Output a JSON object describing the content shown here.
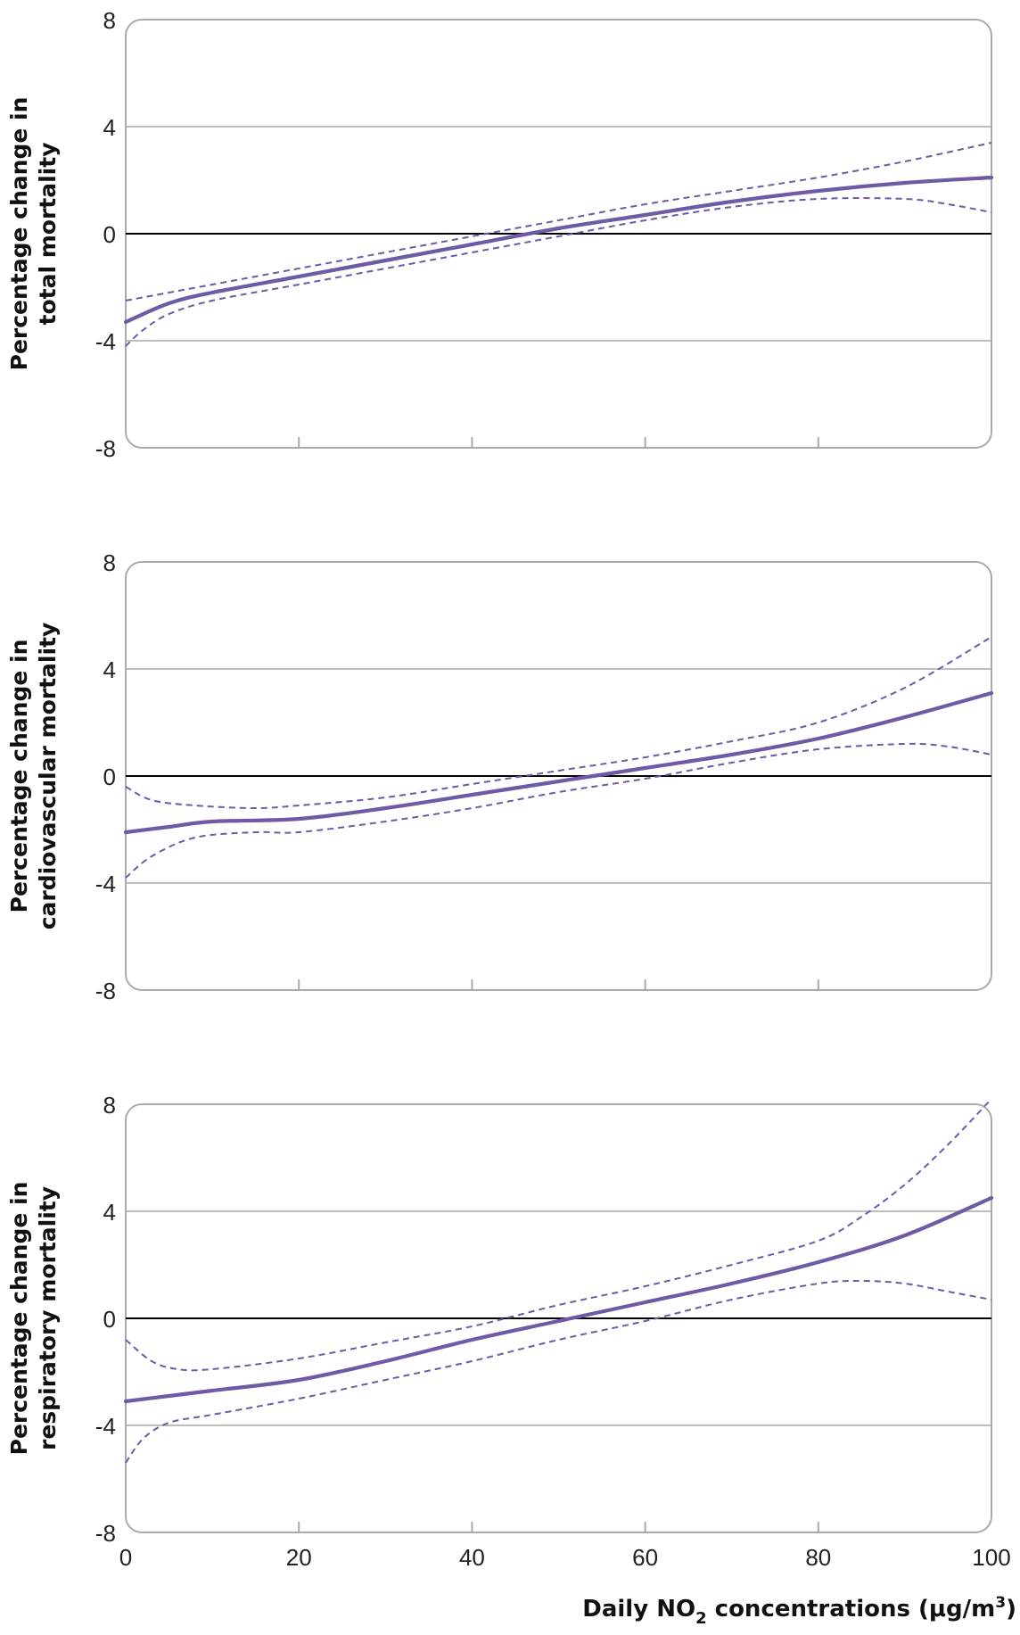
{
  "chart_data": [
    {
      "type": "line",
      "ylabel_lines": [
        "Percentage change in",
        "total mortality"
      ],
      "xlim": [
        0,
        100
      ],
      "ylim": [
        -8,
        8
      ],
      "yticks": [
        -8,
        -4,
        0,
        4,
        8
      ],
      "xticks": [
        0,
        20,
        40,
        60,
        80,
        100
      ],
      "show_xtick_labels": false,
      "grid": true,
      "series": [
        {
          "role": "estimate",
          "style": "solid",
          "x": [
            0,
            5,
            10,
            20,
            30,
            40,
            50,
            60,
            70,
            80,
            90,
            100
          ],
          "y": [
            -3.3,
            -2.6,
            -2.2,
            -1.6,
            -1.0,
            -0.4,
            0.2,
            0.7,
            1.2,
            1.6,
            1.9,
            2.1
          ]
        },
        {
          "role": "upper",
          "style": "dashed",
          "x": [
            0,
            10,
            20,
            30,
            40,
            50,
            60,
            70,
            80,
            90,
            100
          ],
          "y": [
            -2.5,
            -1.9,
            -1.3,
            -0.7,
            -0.1,
            0.5,
            1.1,
            1.6,
            2.1,
            2.7,
            3.4
          ]
        },
        {
          "role": "lower",
          "style": "dashed",
          "x": [
            0,
            2,
            5,
            10,
            20,
            30,
            40,
            50,
            60,
            70,
            80,
            90,
            95,
            100
          ],
          "y": [
            -4.2,
            -3.6,
            -3.0,
            -2.5,
            -1.9,
            -1.3,
            -0.7,
            -0.1,
            0.5,
            1.0,
            1.3,
            1.3,
            1.1,
            0.8
          ]
        }
      ]
    },
    {
      "type": "line",
      "ylabel_lines": [
        "Percentage change in",
        "cardiovascular mortality"
      ],
      "xlim": [
        0,
        100
      ],
      "ylim": [
        -8,
        8
      ],
      "yticks": [
        -8,
        -4,
        0,
        4,
        8
      ],
      "xticks": [
        0,
        20,
        40,
        60,
        80,
        100
      ],
      "show_xtick_labels": false,
      "grid": true,
      "series": [
        {
          "role": "estimate",
          "style": "solid",
          "x": [
            0,
            5,
            10,
            20,
            30,
            40,
            50,
            60,
            70,
            80,
            90,
            100
          ],
          "y": [
            -2.1,
            -1.9,
            -1.7,
            -1.6,
            -1.2,
            -0.7,
            -0.2,
            0.3,
            0.8,
            1.4,
            2.2,
            3.1
          ]
        },
        {
          "role": "upper",
          "style": "dashed",
          "x": [
            0,
            3,
            8,
            15,
            20,
            30,
            40,
            50,
            60,
            70,
            80,
            90,
            100
          ],
          "y": [
            -0.4,
            -0.9,
            -1.1,
            -1.2,
            -1.1,
            -0.8,
            -0.3,
            0.2,
            0.7,
            1.3,
            2.0,
            3.3,
            5.2
          ]
        },
        {
          "role": "lower",
          "style": "dashed",
          "x": [
            0,
            3,
            8,
            15,
            20,
            30,
            40,
            50,
            60,
            70,
            80,
            90,
            95,
            100
          ],
          "y": [
            -3.8,
            -3.0,
            -2.3,
            -2.1,
            -2.1,
            -1.7,
            -1.2,
            -0.6,
            -0.1,
            0.5,
            1.0,
            1.2,
            1.1,
            0.8
          ]
        }
      ]
    },
    {
      "type": "line",
      "ylabel_lines": [
        "Percentage change in",
        "respiratory mortality"
      ],
      "xlabel": "Daily NO",
      "xlabel_sub": "2",
      "xlabel_rest": " concentrations (μg/m",
      "xlabel_sup": "3",
      "xlabel_end": ")",
      "xlim": [
        0,
        100
      ],
      "ylim": [
        -8,
        8
      ],
      "yticks": [
        -8,
        -4,
        0,
        4,
        8
      ],
      "xticks": [
        0,
        20,
        40,
        60,
        80,
        100
      ],
      "show_xtick_labels": true,
      "grid": true,
      "series": [
        {
          "role": "estimate",
          "style": "solid",
          "x": [
            0,
            5,
            10,
            20,
            30,
            40,
            50,
            60,
            70,
            80,
            90,
            100
          ],
          "y": [
            -3.1,
            -2.9,
            -2.7,
            -2.3,
            -1.6,
            -0.8,
            -0.1,
            0.6,
            1.3,
            2.1,
            3.1,
            4.5
          ]
        },
        {
          "role": "upper",
          "style": "dashed",
          "x": [
            0,
            3,
            6,
            10,
            20,
            30,
            40,
            50,
            60,
            70,
            80,
            85,
            90,
            95,
            100
          ],
          "y": [
            -0.8,
            -1.6,
            -1.9,
            -1.9,
            -1.5,
            -0.9,
            -0.3,
            0.5,
            1.2,
            2.0,
            2.9,
            3.8,
            5.0,
            6.5,
            8.2
          ]
        },
        {
          "role": "lower",
          "style": "dashed",
          "x": [
            0,
            2,
            5,
            10,
            20,
            30,
            40,
            50,
            60,
            70,
            80,
            85,
            90,
            95,
            100
          ],
          "y": [
            -5.4,
            -4.5,
            -3.9,
            -3.6,
            -3.0,
            -2.3,
            -1.6,
            -0.8,
            -0.1,
            0.7,
            1.3,
            1.4,
            1.3,
            1.0,
            0.7
          ]
        }
      ]
    }
  ],
  "colors": {
    "series": "#6e5aa5",
    "zero_line": "#000000",
    "grid": "#a8a8a8",
    "frame": "#aaaaaa"
  }
}
